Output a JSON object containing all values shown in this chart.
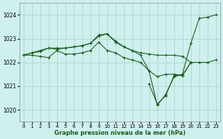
{
  "background_color": "#cef0ee",
  "grid_color": "#aad8cc",
  "line_color": "#1a5c1a",
  "xlabel": "Graphe pression niveau de la mer (hPa)",
  "xlim": [
    -0.5,
    23.5
  ],
  "ylim": [
    1019.5,
    1024.5
  ],
  "yticks": [
    1020,
    1021,
    1022,
    1023,
    1024
  ],
  "xticks": [
    0,
    1,
    2,
    3,
    4,
    5,
    6,
    7,
    8,
    9,
    10,
    11,
    12,
    13,
    14,
    15,
    16,
    17,
    18,
    19,
    20,
    21,
    22,
    23
  ],
  "series1_x": [
    0,
    1,
    2,
    3,
    4,
    5,
    6,
    7,
    8,
    9,
    10,
    11,
    12,
    13,
    14,
    15,
    16,
    17,
    18,
    19,
    20,
    21,
    22,
    23
  ],
  "series1_y": [
    1022.3,
    1022.4,
    1022.45,
    1022.6,
    1022.6,
    1022.6,
    1022.65,
    1022.7,
    1022.8,
    1023.15,
    1023.2,
    1022.85,
    1022.65,
    1022.5,
    1022.4,
    1022.35,
    1022.3,
    1022.3,
    1022.3,
    1022.25,
    1022.0,
    1022.0,
    1022.0,
    1022.1
  ],
  "series2_x": [
    0,
    1,
    2,
    3,
    4,
    5,
    6,
    7,
    8,
    9,
    10,
    11,
    12,
    13,
    14,
    15,
    16,
    17,
    18,
    19,
    20,
    21,
    22,
    23
  ],
  "series2_y": [
    1022.3,
    1022.4,
    1022.5,
    1022.6,
    1022.55,
    1022.6,
    1022.65,
    1022.7,
    1022.8,
    1023.1,
    1023.2,
    1022.9,
    1022.65,
    1022.5,
    1022.3,
    1021.65,
    1020.2,
    1020.65,
    1021.4,
    1021.5,
    1022.8,
    1023.85,
    1023.9,
    1024.0
  ],
  "series3_x": [
    0,
    1,
    2,
    3,
    4,
    5,
    6,
    7,
    8,
    9,
    10,
    11,
    12,
    13,
    14,
    15,
    16,
    17,
    18,
    19,
    20
  ],
  "series3_y": [
    1022.3,
    1022.3,
    1022.25,
    1022.2,
    1022.5,
    1022.35,
    1022.35,
    1022.4,
    1022.5,
    1022.85,
    1022.5,
    1022.4,
    1022.2,
    1022.1,
    1022.0,
    1021.65,
    1021.4,
    1021.5,
    1021.5,
    1021.45,
    1022.0
  ],
  "series4_x": [
    15,
    16,
    17,
    18,
    19,
    20
  ],
  "series4_y": [
    1021.1,
    1020.25,
    1020.6,
    1021.45,
    1021.45,
    1022.0
  ]
}
